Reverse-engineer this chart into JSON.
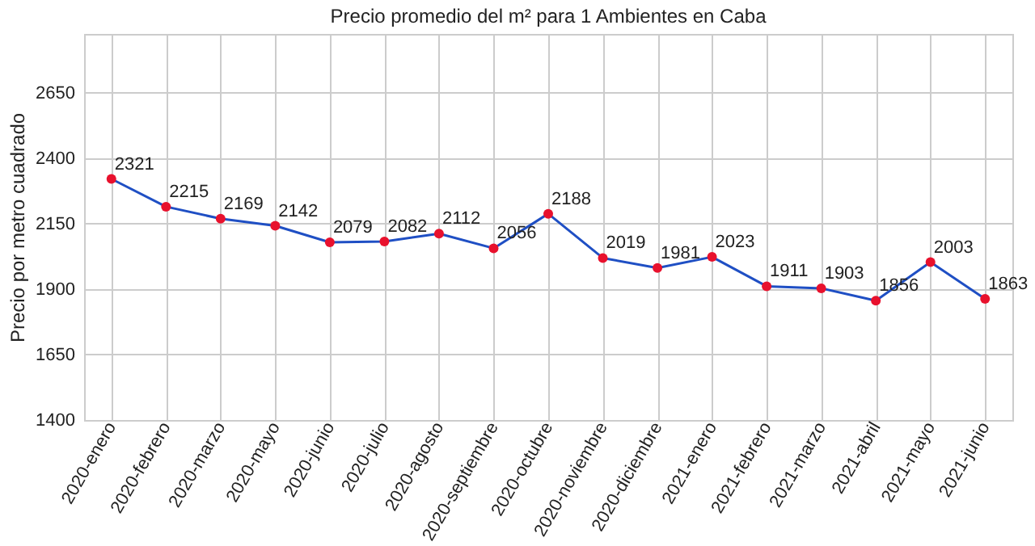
{
  "chart_data": {
    "type": "line",
    "title": "Precio promedio del m² para 1 Ambientes en Caba",
    "ylabel": "Precio por metro cuadrado",
    "categories": [
      "2020-enero",
      "2020-febrero",
      "2020-marzo",
      "2020-mayo",
      "2020-junio",
      "2020-julio",
      "2020-agosto",
      "2020-septiembre",
      "2020-octubre",
      "2020-noviembre",
      "2020-diciembre",
      "2021-enero",
      "2021-febrero",
      "2021-marzo",
      "2021-abril",
      "2021-mayo",
      "2021-junio"
    ],
    "series": [
      {
        "color": "#1f4fc4",
        "colors": [
          "#e8112d",
          "#e8112d",
          "#e8112d",
          "#e8112d",
          "#e8112d",
          "#e8112d",
          "#e8112d",
          "#e8112d",
          "#e8112d",
          "#e8112d",
          "#e8112d",
          "#e8112d",
          "#e8112d",
          "#e8112d",
          "#e8112d",
          "#e8112d",
          "#e8112d"
        ],
        "values": [
          2321,
          2215,
          2169,
          2142,
          2079,
          2082,
          2112,
          2056,
          2188,
          2019,
          1981,
          2023,
          1911,
          1903,
          1856,
          2003,
          1863
        ]
      }
    ],
    "ylim": [
      1400,
      2875
    ],
    "yticks": [
      1400,
      1650,
      1900,
      2150,
      2400,
      2650
    ],
    "grid": true,
    "marker": "circle",
    "data_labels": true
  }
}
